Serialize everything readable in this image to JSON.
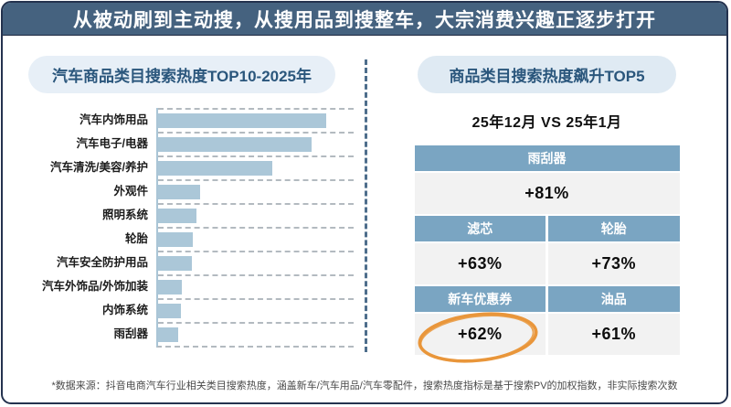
{
  "banner": {
    "title": "从被动刷到主动搜，从搜用品到搜整车，大宗消费兴趣正逐步打开"
  },
  "left_panel": {
    "title": "汽车商品类目搜索热度TOP10-2025年"
  },
  "right_panel": {
    "title": "商品类目搜索热度飙升TOP5",
    "subtitle": "25年12月 VS 25年1月",
    "table": {
      "groups": [
        {
          "cells": [
            {
              "label": "雨刮器",
              "value": "+81%",
              "highlighted": false
            }
          ]
        },
        {
          "cells": [
            {
              "label": "滤芯",
              "value": "+63%",
              "highlighted": false
            },
            {
              "label": "轮胎",
              "value": "+73%",
              "highlighted": false
            }
          ]
        },
        {
          "cells": [
            {
              "label": "新车优惠券",
              "value": "+62%",
              "highlighted": true
            },
            {
              "label": "油品",
              "value": "+61%",
              "highlighted": false
            }
          ]
        }
      ]
    }
  },
  "footer": {
    "note": "*数据来源：抖音电商汽车行业相关类目搜索热度，涵盖新车/汽车用品/汽车零配件，搜索热度指标是基于搜索PV的加权指数，非实际搜索次数"
  },
  "colors": {
    "banner_bg": "#45627f",
    "card_border": "#24324e",
    "pill_bg": "#e7eff7",
    "pill_text": "#2a567c",
    "bar_fill": "#abc7d8",
    "table_header_bg": "#7aa5c2",
    "table_value_bg": "#f2f2f2",
    "highlight_circle": "#e9963b",
    "divider_dash": "#4e6e8c"
  },
  "chart_data": [
    {
      "type": "bar",
      "orientation": "horizontal",
      "title": "汽车商品类目搜索热度TOP10-2025年",
      "categories": [
        "汽车内饰用品",
        "汽车电子/电器",
        "汽车清洗/美容/养护",
        "外观件",
        "照明系统",
        "轮胎",
        "汽车安全防护用品",
        "汽车外饰品/外饰加装",
        "内饰系统",
        "雨刮器"
      ],
      "values": [
        100,
        91,
        68,
        25,
        23,
        20.5,
        20,
        14.3,
        13.7,
        12
      ],
      "xlabel": "",
      "ylabel": "",
      "value_note": "relative search-heat index, longest bar = 100",
      "xlim": [
        0,
        116
      ],
      "grid": "dashed row separators",
      "legend": "none"
    },
    {
      "type": "table",
      "title": "商品类目搜索热度飙升TOP5",
      "comparison": "25年12月 VS 25年1月",
      "rows": [
        {
          "category": "雨刮器",
          "change_pct": 81
        },
        {
          "category": "轮胎",
          "change_pct": 73
        },
        {
          "category": "滤芯",
          "change_pct": 63
        },
        {
          "category": "新车优惠券",
          "change_pct": 62,
          "annotation": "orange hand-drawn circle"
        },
        {
          "category": "油品",
          "change_pct": 61
        }
      ]
    }
  ]
}
